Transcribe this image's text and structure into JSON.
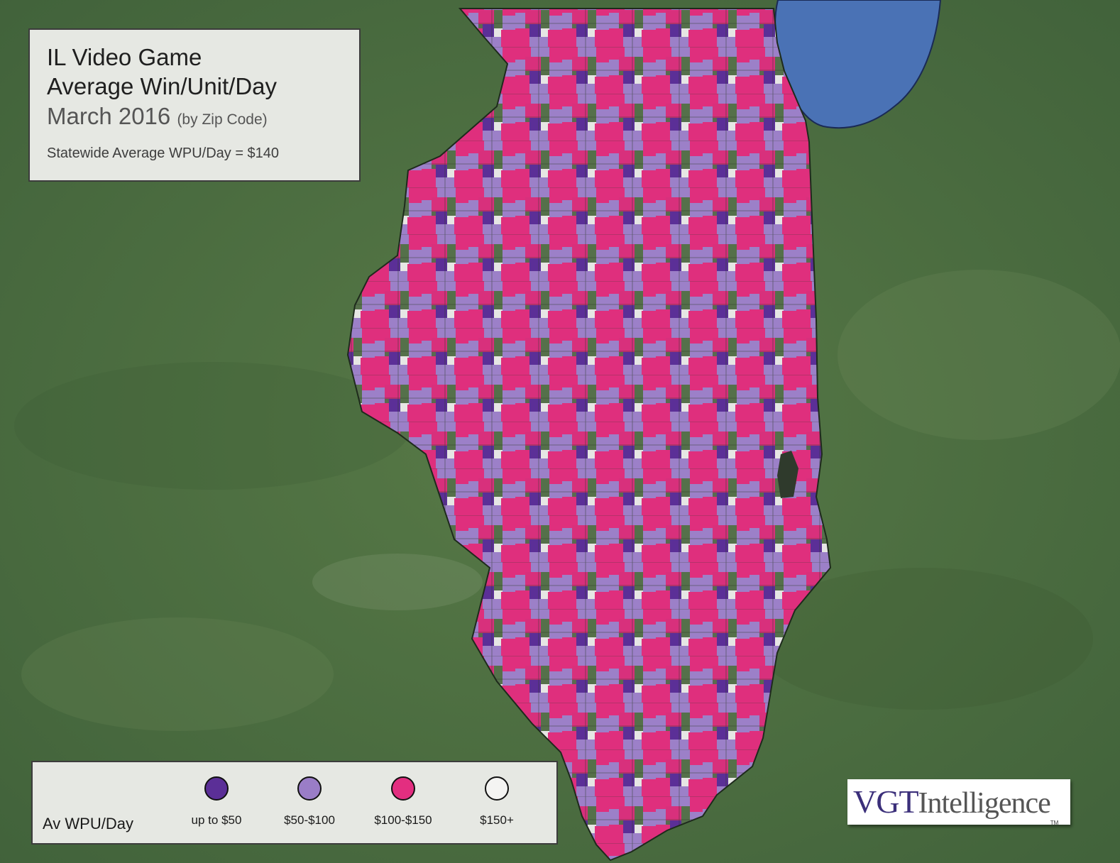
{
  "title": {
    "line1": "IL Video Game",
    "line2": "Average Win/Unit/Day",
    "period": "March 2016",
    "period_note": "(by Zip Code)",
    "statewide": "Statewide Average WPU/Day = $140"
  },
  "legend": {
    "title": "Av WPU/Day",
    "items": [
      {
        "label": "up to $50",
        "color": "#5b2f97"
      },
      {
        "label": "$50-$100",
        "color": "#9a7dc7"
      },
      {
        "label": "$100-$150",
        "color": "#e32e80"
      },
      {
        "label": "$150+",
        "color": "#f4f4f2"
      }
    ]
  },
  "logo": {
    "brand": "VGT",
    "word": "Intelligence",
    "tm": "TM"
  },
  "colors": {
    "terrain": "#4f7041",
    "lake": "#4a72b5",
    "no_data": "#4a5d45",
    "boundary": "#1e2a1c"
  }
}
